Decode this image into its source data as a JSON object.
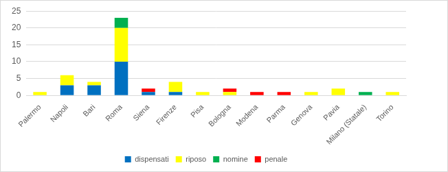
{
  "chart_data": {
    "type": "bar",
    "stacked": true,
    "grid": true,
    "legend": "bottom",
    "categories": [
      "Palermo",
      "Napoli",
      "Bari",
      "Roma",
      "Siena",
      "Firenze",
      "Pisa",
      "Bologna",
      "Modena",
      "Parma",
      "Genova",
      "Pavia",
      "Milano (Statale)",
      "Torino"
    ],
    "series": [
      {
        "name": "dispensati",
        "color": "#0070c0",
        "values": [
          0,
          3,
          3,
          10,
          1,
          1,
          0,
          0,
          0,
          0,
          0,
          0,
          0,
          0
        ]
      },
      {
        "name": "riposo",
        "color": "#ffff00",
        "values": [
          1,
          3,
          1,
          10,
          0,
          3,
          1,
          1,
          0,
          0,
          1,
          2,
          0,
          1
        ]
      },
      {
        "name": "nomine",
        "color": "#00b050",
        "values": [
          0,
          0,
          0,
          3,
          0,
          0,
          0,
          0,
          0,
          0,
          0,
          0,
          1,
          0
        ]
      },
      {
        "name": "penale",
        "color": "#ff0000",
        "values": [
          0,
          0,
          0,
          0,
          1,
          0,
          0,
          1,
          1,
          1,
          0,
          0,
          0,
          0
        ]
      }
    ],
    "ylim": [
      0,
      25
    ],
    "yticks": [
      0,
      5,
      10,
      15,
      20,
      25
    ]
  }
}
